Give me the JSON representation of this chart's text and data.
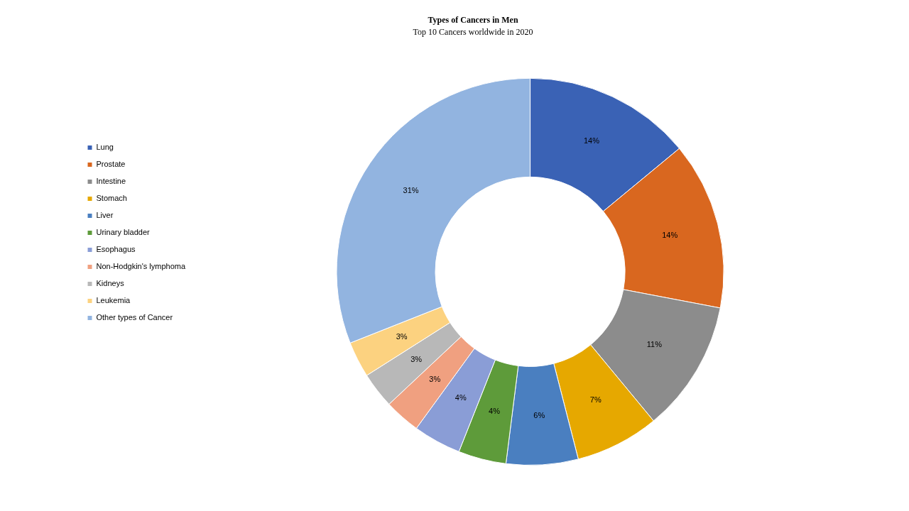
{
  "chart_data": {
    "type": "donut",
    "title": "Types of Cancers in Men",
    "subtitle": "Top 10 Cancers worldwide in 2020",
    "categories": [
      "Lung",
      "Prostate",
      "Intestine",
      "Stomach",
      "Liver",
      "Urinary bladder",
      "Esophagus",
      "Non-Hodgkin's lymphoma",
      "Kidneys",
      "Leukemia",
      "Other types of Cancer"
    ],
    "values": [
      14,
      14,
      11,
      7,
      6,
      4,
      4,
      3,
      3,
      3,
      31
    ],
    "colors": [
      "#3a62b5",
      "#d9671f",
      "#8c8c8c",
      "#e6a800",
      "#4a7fc0",
      "#5e9b3a",
      "#8a9dd6",
      "#f0a080",
      "#b8b8b8",
      "#fcd280",
      "#92b4e0"
    ],
    "value_labels": [
      "14%",
      "14%",
      "11%",
      "7%",
      "6%",
      "4%",
      "4%",
      "3%",
      "3%",
      "3%",
      "31%"
    ],
    "legend": "left"
  }
}
